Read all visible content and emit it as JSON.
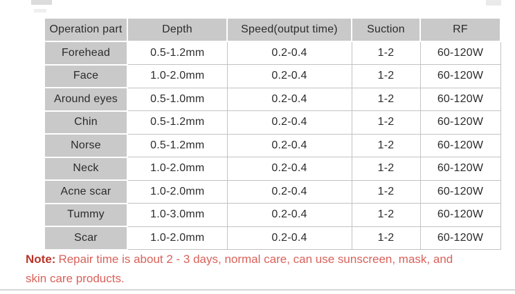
{
  "table": {
    "headers": [
      "Operation part",
      "Depth",
      "Speed(output time)",
      "Suction",
      "RF"
    ],
    "rows": [
      [
        "Forehead",
        "0.5-1.2mm",
        "0.2-0.4",
        "1-2",
        "60-120W"
      ],
      [
        "Face",
        "1.0-2.0mm",
        "0.2-0.4",
        "1-2",
        "60-120W"
      ],
      [
        "Around eyes",
        "0.5-1.0mm",
        "0.2-0.4",
        "1-2",
        "60-120W"
      ],
      [
        "Chin",
        "0.5-1.2mm",
        "0.2-0.4",
        "1-2",
        "60-120W"
      ],
      [
        "Norse",
        "0.5-1.2mm",
        "0.2-0.4",
        "1-2",
        "60-120W"
      ],
      [
        "Neck",
        "1.0-2.0mm",
        "0.2-0.4",
        "1-2",
        "60-120W"
      ],
      [
        "Acne scar",
        "1.0-2.0mm",
        "0.2-0.4",
        "1-2",
        "60-120W"
      ],
      [
        "Tummy",
        "1.0-3.0mm",
        "0.2-0.4",
        "1-2",
        "60-120W"
      ],
      [
        "Scar",
        "1.0-2.0mm",
        "0.2-0.4",
        "1-2",
        "60-120W"
      ]
    ]
  },
  "note": {
    "label": "Note:",
    "line1": "Repair time is about 2 - 3 days, normal care, can use sunscreen, mask, and",
    "line2": "skin care products."
  },
  "colors": {
    "header_bg": "#c9c9c9",
    "grid_line": "#c2c2c2",
    "cell_text": "#2b2b2b",
    "note_label_color": "#b93529",
    "note_text_color": "#d9615a",
    "separator": "#d6d6d6",
    "artifact": "#dcdcdc"
  }
}
